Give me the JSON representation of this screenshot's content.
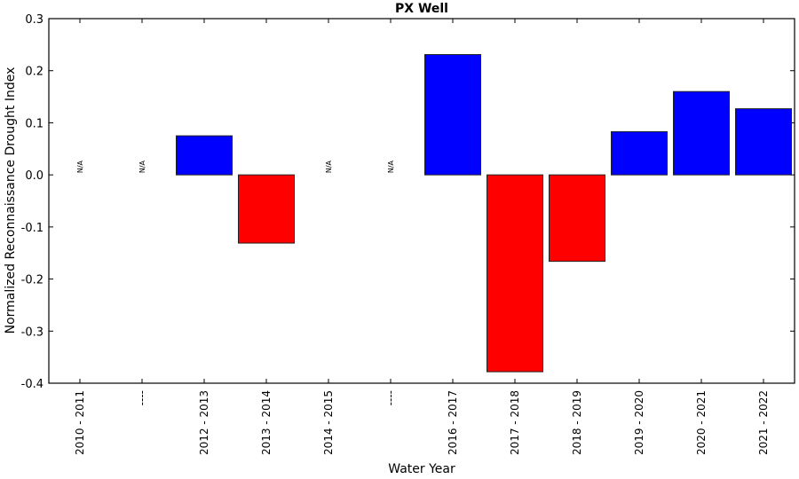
{
  "chart_data": {
    "type": "bar",
    "title": "PX Well",
    "xlabel": "Water Year",
    "ylabel": "Normalized Reconnaissance Drought Index",
    "ylim": [
      -0.4,
      0.3
    ],
    "yticks": [
      "-0.4",
      "-0.3",
      "-0.2",
      "-0.1",
      "0.0",
      "0.1",
      "0.2",
      "0.3"
    ],
    "grid": false,
    "categories": [
      "2010 - 2011",
      "----",
      "2012 - 2013",
      "2013 - 2014",
      "2014 - 2015",
      "----",
      "2016 - 2017",
      "2017 - 2018",
      "2018 - 2019",
      "2019 - 2020",
      "2020 - 2021",
      "2021 - 2022"
    ],
    "values": [
      null,
      null,
      0.075,
      -0.131,
      null,
      null,
      0.231,
      -0.378,
      -0.166,
      0.083,
      0.16,
      0.127
    ],
    "missing_label": "N/A",
    "colors": {
      "positive": "#0000ff",
      "negative": "#ff0000"
    }
  }
}
